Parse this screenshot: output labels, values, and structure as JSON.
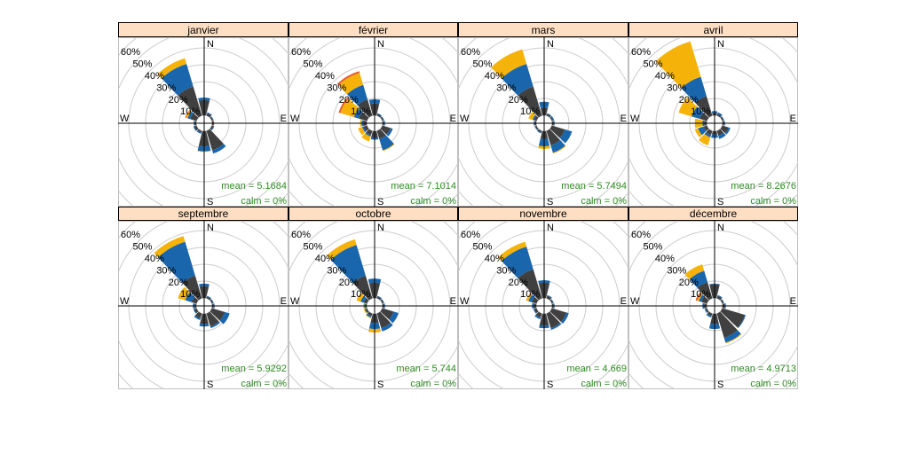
{
  "chart_data": {
    "type": "windrose",
    "title": "",
    "facet_by": "month",
    "radial_unit": "%",
    "radial_ticks": [
      "10%",
      "20%",
      "30%",
      "40%",
      "50%",
      "60%"
    ],
    "radial_max": 60,
    "directions_deg": [
      0,
      30,
      60,
      90,
      120,
      150,
      180,
      210,
      240,
      270,
      300,
      330
    ],
    "compass_labels": {
      "N": "N",
      "E": "E",
      "S": "S",
      "W": "W"
    },
    "layer_colors": [
      "#404040",
      "#1a66ad",
      "#f5b30a",
      "#e4572a"
    ],
    "colors": {
      "strip_bg": "#fedfc3",
      "grid": "#cccccc",
      "axis": "#000000",
      "stat_text": "#2e8b22",
      "panel_border": "#bfbfbf"
    },
    "panels": [
      {
        "month": "janvier",
        "mean": "mean = 5.1684",
        "calm": "calm = 0%",
        "petals": [
          [
            9,
            10.5,
            0,
            0
          ],
          [
            1.5,
            2,
            0,
            0
          ],
          [
            0.8,
            1.2,
            0,
            0
          ],
          [
            0.8,
            1.2,
            0,
            0
          ],
          [
            1,
            1.5,
            0,
            0
          ],
          [
            12,
            14,
            0,
            0
          ],
          [
            9,
            12,
            12.3,
            0
          ],
          [
            1,
            1.8,
            0,
            0
          ],
          [
            1.5,
            2,
            0,
            0
          ],
          [
            1,
            1.5,
            0,
            0
          ],
          [
            4,
            5.5,
            6.5,
            7
          ],
          [
            18,
            32,
            35.5,
            0
          ]
        ]
      },
      {
        "month": "février",
        "mean": "mean = 7.1014",
        "calm": "calm = 0%",
        "petals": [
          [
            7,
            9.5,
            0,
            0
          ],
          [
            1,
            1.5,
            0,
            0
          ],
          [
            0.8,
            1.2,
            0,
            0
          ],
          [
            1,
            1.5,
            0,
            0
          ],
          [
            5,
            6.5,
            0,
            0
          ],
          [
            5,
            12,
            12.5,
            0
          ],
          [
            4,
            5,
            0,
            0
          ],
          [
            2.5,
            3.5,
            6.5,
            0
          ],
          [
            2,
            3,
            5.5,
            0
          ],
          [
            2,
            3,
            4,
            0
          ],
          [
            5,
            8,
            16.5,
            17.5
          ],
          [
            10,
            19,
            26.5,
            27.5
          ]
        ]
      },
      {
        "month": "mars",
        "mean": "mean = 5.7494",
        "calm": "calm = 0%",
        "petals": [
          [
            4.5,
            8,
            0,
            0
          ],
          [
            1,
            1.5,
            0,
            0
          ],
          [
            0.8,
            1.5,
            0,
            0
          ],
          [
            1,
            1.5,
            0,
            0
          ],
          [
            8,
            12.5,
            0,
            0
          ],
          [
            9,
            13.5,
            14,
            0
          ],
          [
            4.5,
            9,
            10.5,
            0
          ],
          [
            1,
            1.5,
            0,
            0
          ],
          [
            0.8,
            1.2,
            0,
            0
          ],
          [
            1,
            1.5,
            0,
            0
          ],
          [
            1.5,
            2.5,
            5,
            0
          ],
          [
            18,
            32,
            41,
            0
          ]
        ]
      },
      {
        "month": "avril",
        "mean": "mean = 8.2676",
        "calm": "calm = 0%",
        "petals": [
          [
            1.5,
            2.5,
            0,
            0
          ],
          [
            1,
            2,
            0,
            0
          ],
          [
            0.8,
            1.2,
            0,
            0
          ],
          [
            1,
            1.5,
            0,
            0
          ],
          [
            4,
            5,
            0,
            0
          ],
          [
            3,
            5,
            0,
            0
          ],
          [
            2,
            4,
            0,
            0
          ],
          [
            2.5,
            4,
            9,
            0
          ],
          [
            2,
            5.5,
            7.5,
            0
          ],
          [
            1.5,
            2.5,
            7,
            0
          ],
          [
            4.5,
            9.5,
            17.5,
            0
          ],
          [
            12,
            24,
            46,
            0
          ]
        ]
      },
      {
        "month": "septembre",
        "mean": "mean = 5.9292",
        "calm": "calm = 0%",
        "petals": [
          [
            7,
            8.5,
            0,
            0
          ],
          [
            1,
            1.5,
            0,
            0
          ],
          [
            0.8,
            1.2,
            0,
            0
          ],
          [
            1,
            1.5,
            0,
            0
          ],
          [
            8,
            11,
            0,
            0
          ],
          [
            8,
            9,
            0,
            0
          ],
          [
            6,
            7.5,
            0,
            0
          ],
          [
            3,
            4,
            0,
            0
          ],
          [
            1.5,
            2,
            0,
            0
          ],
          [
            1,
            2,
            0,
            0
          ],
          [
            3,
            7,
            11.5,
            0
          ],
          [
            14,
            35,
            38.5,
            0
          ]
        ]
      },
      {
        "month": "octobre",
        "mean": "mean = 5.744",
        "calm": "calm = 0%",
        "petals": [
          [
            9,
            11.5,
            0,
            0
          ],
          [
            1,
            1.5,
            0,
            0
          ],
          [
            0.8,
            1.2,
            0,
            0
          ],
          [
            1,
            1.5,
            0,
            0
          ],
          [
            7,
            10,
            0,
            0
          ],
          [
            9,
            11,
            0,
            0
          ],
          [
            5.5,
            9,
            11,
            0
          ],
          [
            1.5,
            2.5,
            3,
            0
          ],
          [
            1,
            1.5,
            2,
            0
          ],
          [
            1,
            1.5,
            2,
            0
          ],
          [
            2,
            4,
            6.5,
            0
          ],
          [
            14,
            33,
            36.5,
            0
          ]
        ]
      },
      {
        "month": "novembre",
        "mean": "mean = 4.669",
        "calm": "calm = 0%",
        "petals": [
          [
            9,
            10.5,
            0,
            0
          ],
          [
            1.5,
            2,
            0,
            0
          ],
          [
            0.8,
            1.2,
            0,
            0
          ],
          [
            1,
            1.5,
            0,
            0
          ],
          [
            9,
            10.5,
            0,
            0
          ],
          [
            9,
            10,
            0,
            0
          ],
          [
            7,
            8.5,
            0,
            0
          ],
          [
            2.5,
            3.5,
            0,
            0
          ],
          [
            1.5,
            2,
            0,
            0
          ],
          [
            1.5,
            2.5,
            0,
            0
          ],
          [
            3,
            5,
            6.5,
            0
          ],
          [
            18,
            32,
            35,
            0
          ]
        ]
      },
      {
        "month": "décembre",
        "mean": "mean = 4.9713",
        "calm": "calm = 0%",
        "petals": [
          [
            8,
            8.5,
            0,
            0
          ],
          [
            1.5,
            2,
            0,
            0
          ],
          [
            0.8,
            1.2,
            0,
            0
          ],
          [
            1.5,
            2,
            0,
            0
          ],
          [
            14,
            14.5,
            0,
            0
          ],
          [
            15,
            18,
            18.5,
            0
          ],
          [
            6,
            9,
            0,
            0
          ],
          [
            1.5,
            2.5,
            0,
            0
          ],
          [
            1,
            1.5,
            0,
            0
          ],
          [
            1.5,
            2.5,
            0,
            0
          ],
          [
            3.5,
            5,
            6,
            7
          ],
          [
            10,
            17,
            21,
            0
          ]
        ]
      }
    ]
  }
}
